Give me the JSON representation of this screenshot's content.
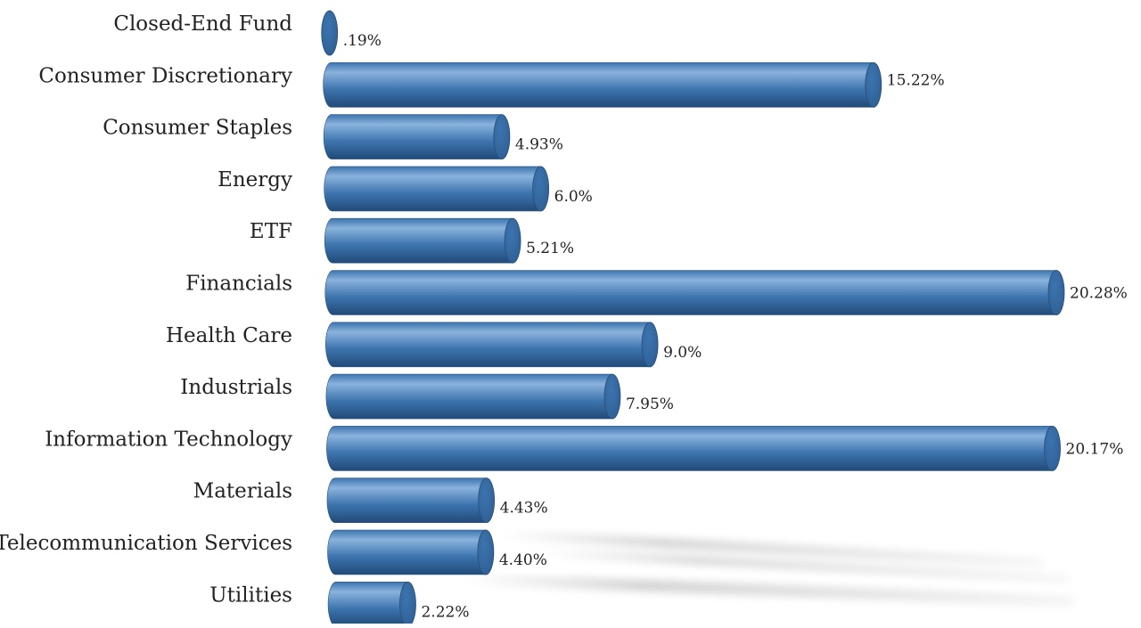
{
  "chart_data": {
    "type": "bar",
    "orientation": "horizontal",
    "style": "3d-cylinder",
    "categories": [
      "Closed-End Fund",
      "Consumer Discretionary",
      "Consumer Staples",
      "Energy",
      "ETF",
      "Financials",
      "Health Care",
      "Industrials",
      "Information Technology",
      "Materials",
      "Telecommunication Services",
      "Utilities"
    ],
    "values": [
      0.19,
      15.22,
      4.93,
      6.0,
      5.21,
      20.28,
      9.0,
      7.95,
      20.17,
      4.43,
      4.4,
      2.22
    ],
    "data_labels": [
      ".19%",
      "15.22%",
      "4.93%",
      "6.0%",
      "5.21%",
      "20.28%",
      "9.0%",
      "7.95%",
      "20.17%",
      "4.43%",
      "4.40%",
      "2.22%"
    ],
    "title": "",
    "xlabel": "",
    "ylabel": "",
    "xlim": [
      0,
      20.28
    ],
    "grid": false,
    "legend": "none",
    "bar_color": "#3d74ae",
    "bar_highlight": "#8ab2dc",
    "bar_shadow": "#214a78",
    "cap_color": "#2e5f94"
  }
}
